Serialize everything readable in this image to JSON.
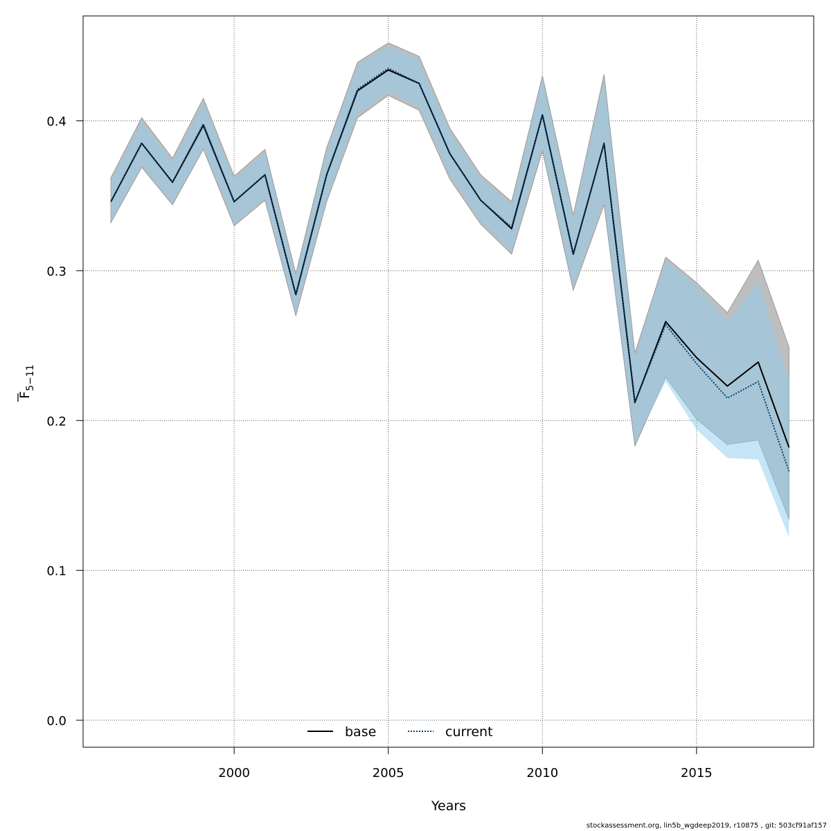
{
  "chart_data": {
    "type": "line",
    "title": "",
    "xlabel": "Years",
    "ylabel_main": "F",
    "ylabel_sub": "5−11",
    "xlim": [
      1995.1,
      2018.8
    ],
    "ylim": [
      -0.018,
      0.47
    ],
    "x_ticks": [
      2000,
      2005,
      2010,
      2015
    ],
    "y_ticks": [
      0.0,
      0.1,
      0.2,
      0.3,
      0.4
    ],
    "y_tick_labels": [
      "0.0",
      "0.1",
      "0.2",
      "0.3",
      "0.4"
    ],
    "grid": true,
    "legend_position": "bottom-center",
    "x": [
      1996,
      1997,
      1998,
      1999,
      2000,
      2001,
      2002,
      2003,
      2004,
      2005,
      2006,
      2007,
      2008,
      2009,
      2010,
      2011,
      2012,
      2013,
      2014,
      2015,
      2016,
      2017,
      2018
    ],
    "series": [
      {
        "name": "base",
        "line_style": "solid",
        "line_color": "#000000",
        "band_color": "#bebebe",
        "values": [
          0.346,
          0.385,
          0.359,
          0.397,
          0.346,
          0.364,
          0.284,
          0.364,
          0.42,
          0.434,
          0.425,
          0.378,
          0.347,
          0.328,
          0.404,
          0.311,
          0.385,
          0.212,
          0.266,
          0.242,
          0.223,
          0.239,
          0.182
        ],
        "lower": [
          0.332,
          0.369,
          0.344,
          0.381,
          0.33,
          0.347,
          0.27,
          0.346,
          0.402,
          0.417,
          0.407,
          0.361,
          0.331,
          0.311,
          0.38,
          0.287,
          0.344,
          0.183,
          0.229,
          0.201,
          0.184,
          0.187,
          0.134
        ],
        "upper": [
          0.362,
          0.402,
          0.375,
          0.415,
          0.363,
          0.381,
          0.298,
          0.382,
          0.439,
          0.452,
          0.443,
          0.395,
          0.364,
          0.346,
          0.43,
          0.337,
          0.431,
          0.245,
          0.309,
          0.292,
          0.272,
          0.307,
          0.249
        ]
      },
      {
        "name": "current",
        "line_style": "dotted",
        "line_color": "#0a3d6b",
        "band_color": "#8ecbee",
        "values": [
          0.346,
          0.385,
          0.359,
          0.398,
          0.346,
          0.364,
          0.284,
          0.364,
          0.421,
          0.435,
          0.425,
          0.378,
          0.347,
          0.329,
          0.404,
          0.311,
          0.385,
          0.212,
          0.264,
          0.238,
          0.215,
          0.226,
          0.166
        ],
        "lower": [
          0.333,
          0.37,
          0.345,
          0.382,
          0.331,
          0.348,
          0.272,
          0.348,
          0.404,
          0.419,
          0.409,
          0.363,
          0.333,
          0.313,
          0.382,
          0.289,
          0.347,
          0.185,
          0.226,
          0.194,
          0.175,
          0.174,
          0.122
        ],
        "upper": [
          0.36,
          0.4,
          0.373,
          0.413,
          0.361,
          0.379,
          0.296,
          0.38,
          0.437,
          0.45,
          0.441,
          0.393,
          0.362,
          0.344,
          0.428,
          0.335,
          0.428,
          0.243,
          0.307,
          0.29,
          0.266,
          0.293,
          0.228
        ]
      }
    ]
  },
  "footer_text": "stockassessment.org, lin5b_wgdeep2019, r10875 , git: 503cf91af157"
}
